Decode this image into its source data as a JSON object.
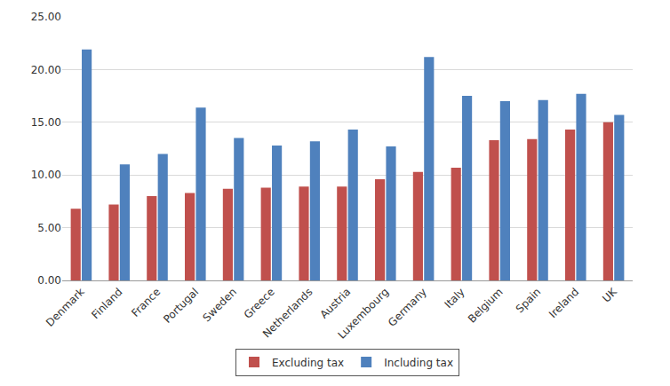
{
  "chart_data": {
    "type": "bar",
    "categories": [
      "Denmark",
      "Finland",
      "France",
      "Portugal",
      "Sweden",
      "Greece",
      "Netherlands",
      "Austria",
      "Luxembourg",
      "Germany",
      "Italy",
      "Belgium",
      "Spain",
      "Ireland",
      "UK"
    ],
    "series": [
      {
        "name": "Excluding tax",
        "color": "#c0504d",
        "values": [
          6.8,
          7.2,
          8.0,
          8.3,
          8.7,
          8.8,
          8.9,
          8.9,
          9.6,
          10.3,
          10.7,
          13.3,
          13.4,
          14.3,
          15.0
        ]
      },
      {
        "name": "Including tax",
        "color": "#4f81bd",
        "values": [
          21.9,
          11.0,
          12.0,
          16.4,
          13.5,
          12.8,
          13.2,
          14.3,
          12.7,
          21.2,
          17.5,
          17.0,
          17.1,
          17.7,
          15.7
        ]
      }
    ],
    "ylim": [
      0,
      25
    ],
    "yticks": [
      {
        "value": 0,
        "label": "0.00"
      },
      {
        "value": 5,
        "label": "5.00"
      },
      {
        "value": 10,
        "label": "10.00"
      },
      {
        "value": 15,
        "label": "15.00"
      },
      {
        "value": 20,
        "label": "20.00"
      },
      {
        "value": 25,
        "label": "25.00"
      }
    ],
    "grid": true,
    "legend": "bottom"
  }
}
